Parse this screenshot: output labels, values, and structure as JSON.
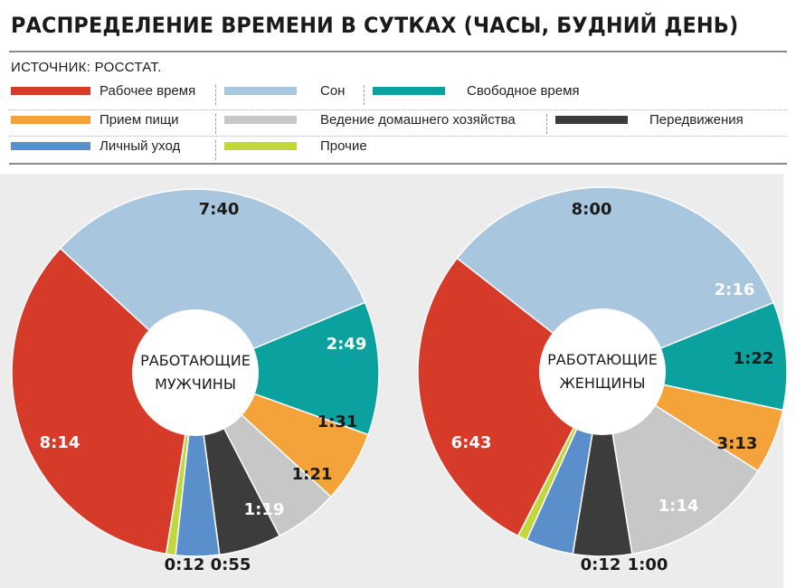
{
  "title": "РАСПРЕДЕЛЕНИЕ ВРЕМЕНИ В СУТКАХ (ЧАСЫ, БУДНИЙ ДЕНЬ)",
  "source": "ИСТОЧНИК: РОССТАТ.",
  "colors": {
    "work": "#d63b2a",
    "sleep": "#a9c6df",
    "free": "#0aa19e",
    "food": "#f4a23a",
    "house": "#c7c7c7",
    "travel": "#3c3c3c",
    "personal": "#5b8fcb",
    "other": "#c2d73b"
  },
  "legend": [
    {
      "key": "work",
      "label": "Рабочее время"
    },
    {
      "key": "sleep",
      "label": "Сон"
    },
    {
      "key": "free",
      "label": "Свободное время"
    },
    {
      "key": "food",
      "label": "Прием пищи"
    },
    {
      "key": "house",
      "label": "Ведение домашнего хозяйства"
    },
    {
      "key": "travel",
      "label": "Передвижения"
    },
    {
      "key": "personal",
      "label": "Личный уход"
    },
    {
      "key": "other",
      "label": "Прочие"
    }
  ],
  "chart_data": [
    {
      "type": "pie",
      "center_label": [
        "РАБОТАЮЩИЕ",
        "МУЖЧИНЫ"
      ],
      "slices": [
        {
          "key": "sleep",
          "value_min": 460,
          "label": "7:40"
        },
        {
          "key": "free",
          "value_min": 169,
          "label": "2:49"
        },
        {
          "key": "food",
          "value_min": 91,
          "label": "1:31"
        },
        {
          "key": "house",
          "value_min": 81,
          "label": "1:21"
        },
        {
          "key": "travel",
          "value_min": 79,
          "label": "1:19"
        },
        {
          "key": "personal",
          "value_min": 55,
          "label": "0:55"
        },
        {
          "key": "other",
          "value_min": 12,
          "label": "0:12"
        },
        {
          "key": "work",
          "value_min": 494,
          "label": "8:14"
        }
      ]
    },
    {
      "type": "pie",
      "center_label": [
        "РАБОТАЮЩИЕ",
        "ЖЕНЩИНЫ"
      ],
      "slices": [
        {
          "key": "sleep",
          "value_min": 480,
          "label": "8:00"
        },
        {
          "key": "free",
          "value_min": 136,
          "label": "2:16"
        },
        {
          "key": "food",
          "value_min": 82,
          "label": "1:22"
        },
        {
          "key": "house",
          "value_min": 193,
          "label": "3:13"
        },
        {
          "key": "travel",
          "value_min": 74,
          "label": "1:14"
        },
        {
          "key": "personal",
          "value_min": 60,
          "label": "1:00"
        },
        {
          "key": "other",
          "value_min": 12,
          "label": "0:12"
        },
        {
          "key": "work",
          "value_min": 403,
          "label": "6:43"
        }
      ]
    }
  ]
}
